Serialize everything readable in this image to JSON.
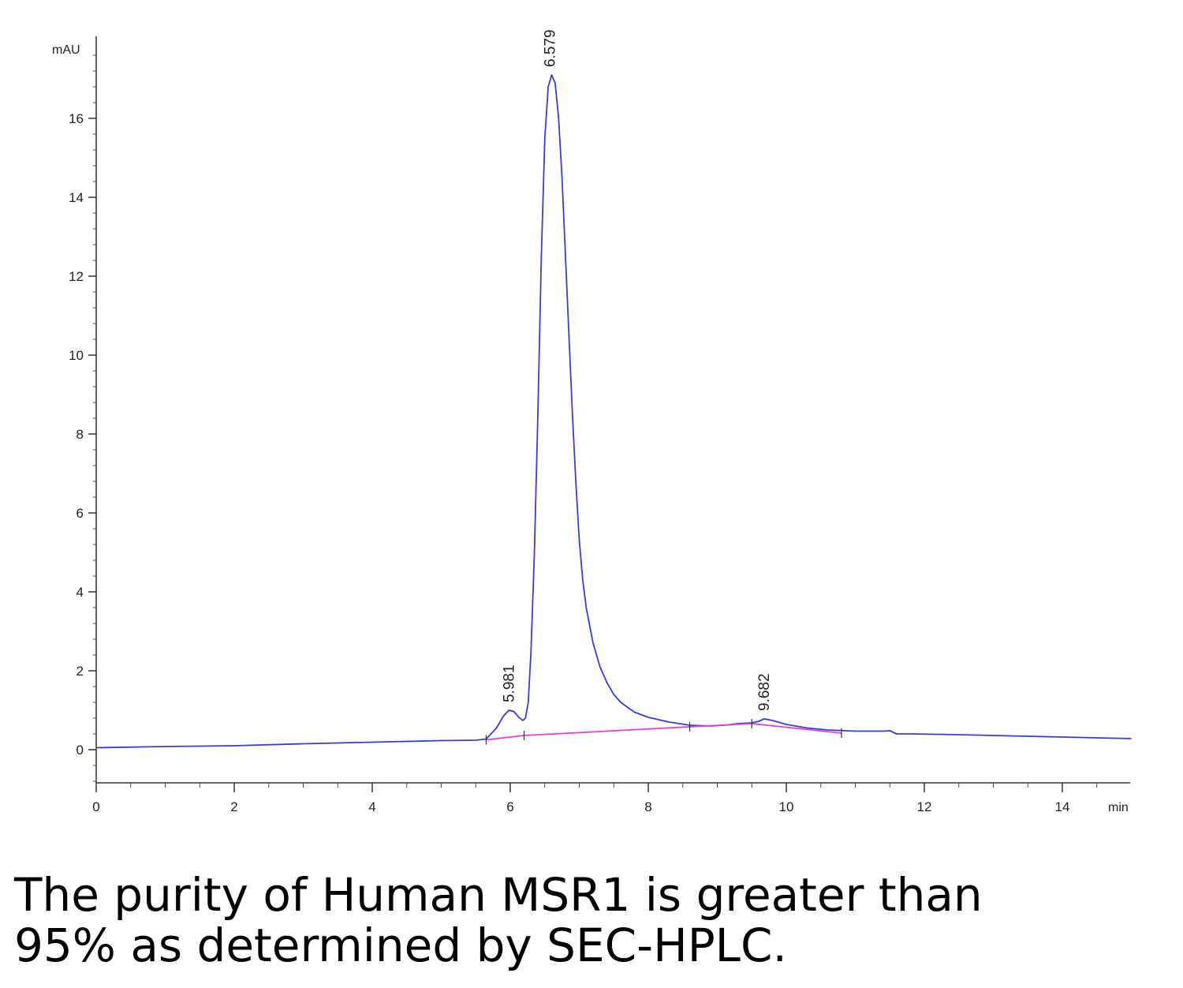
{
  "chart_data": {
    "type": "line",
    "ylabel": "mAU",
    "xlabel": "min",
    "xlim": [
      0,
      15
    ],
    "ylim": [
      -0.8,
      18
    ],
    "x_ticks": [
      0,
      2,
      4,
      6,
      8,
      10,
      12,
      14
    ],
    "y_ticks": [
      0,
      2,
      4,
      6,
      8,
      10,
      12,
      14,
      16
    ],
    "grid": false,
    "series": [
      {
        "color": "#3b3bd6",
        "x": [
          0,
          1,
          2,
          3,
          4,
          5,
          5.5,
          5.65,
          5.8,
          5.9,
          5.98,
          6.05,
          6.12,
          6.18,
          6.22,
          6.26,
          6.3,
          6.35,
          6.4,
          6.45,
          6.5,
          6.55,
          6.6,
          6.65,
          6.7,
          6.75,
          6.8,
          6.85,
          6.9,
          6.95,
          7.0,
          7.05,
          7.1,
          7.2,
          7.3,
          7.4,
          7.5,
          7.6,
          7.8,
          8.0,
          8.3,
          8.6,
          8.9,
          9.1,
          9.3,
          9.5,
          9.6,
          9.68,
          9.8,
          10.0,
          10.3,
          10.6,
          11.0,
          11.4,
          11.5,
          11.6,
          11.8,
          12.5,
          13.5,
          14.5,
          15.0
        ],
        "y": [
          0.05,
          0.08,
          0.1,
          0.15,
          0.19,
          0.23,
          0.24,
          0.27,
          0.55,
          0.85,
          1.0,
          0.97,
          0.83,
          0.74,
          0.8,
          1.2,
          2.5,
          5.0,
          8.5,
          12.5,
          15.5,
          16.8,
          17.1,
          16.9,
          16.0,
          14.5,
          12.5,
          10.5,
          8.5,
          6.8,
          5.3,
          4.3,
          3.6,
          2.7,
          2.1,
          1.7,
          1.4,
          1.2,
          0.95,
          0.82,
          0.7,
          0.62,
          0.6,
          0.62,
          0.66,
          0.68,
          0.72,
          0.78,
          0.74,
          0.64,
          0.55,
          0.5,
          0.47,
          0.47,
          0.48,
          0.4,
          0.4,
          0.38,
          0.34,
          0.3,
          0.28
        ]
      },
      {
        "name": "",
        "color": "#e040d0",
        "x": [
          5.65,
          6.2,
          8.6,
          9.5,
          10.8
        ],
        "y": [
          0.25,
          0.36,
          0.58,
          0.66,
          0.42
        ]
      }
    ],
    "peak_labels": [
      {
        "x": 5.981,
        "y": 1.0,
        "text": "5.981"
      },
      {
        "x": 6.579,
        "y": 17.1,
        "text": "6.579"
      },
      {
        "x": 9.682,
        "y": 0.78,
        "text": "9.682"
      }
    ]
  },
  "caption": {
    "line1": "The purity of Human MSR1 is greater than",
    "line2": "95% as determined by SEC-HPLC."
  }
}
